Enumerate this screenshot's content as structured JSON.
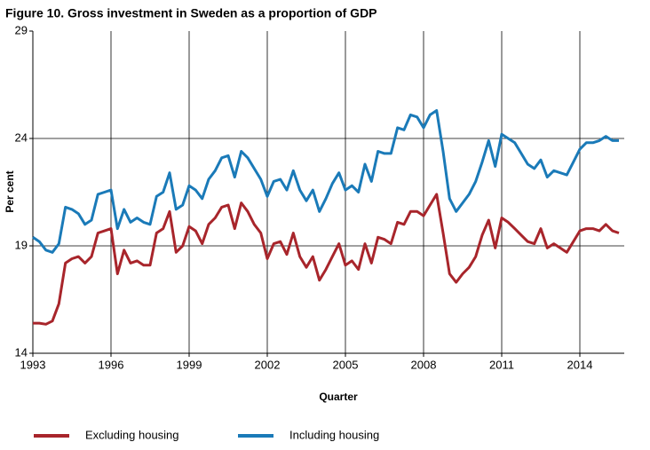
{
  "chart_data": {
    "type": "line",
    "title": "Figure 10. Gross investment in Sweden as a proportion of GDP",
    "xlabel": "Quarter",
    "ylabel": "Per cent",
    "categories": [
      "1993",
      null,
      null,
      null,
      null,
      null,
      null,
      null,
      null,
      null,
      null,
      null,
      "1996",
      null,
      null,
      null,
      null,
      null,
      null,
      null,
      null,
      null,
      null,
      null,
      "1999",
      null,
      null,
      null,
      null,
      null,
      null,
      null,
      null,
      null,
      null,
      null,
      "2002",
      null,
      null,
      null,
      null,
      null,
      null,
      null,
      null,
      null,
      null,
      null,
      "2005",
      null,
      null,
      null,
      null,
      null,
      null,
      null,
      null,
      null,
      null,
      null,
      "2008",
      null,
      null,
      null,
      null,
      null,
      null,
      null,
      null,
      null,
      null,
      null,
      "2011",
      null,
      null,
      null,
      null,
      null,
      null,
      null,
      null,
      null,
      null,
      null,
      "2014",
      null,
      null,
      null,
      null,
      null,
      null
    ],
    "series": [
      {
        "name": "Excluding housing",
        "color": "#a8252b",
        "values": [
          15.4,
          15.4,
          15.35,
          15.5,
          16.3,
          18.2,
          18.4,
          18.5,
          18.2,
          18.5,
          19.6,
          19.7,
          19.8,
          17.7,
          18.8,
          18.2,
          18.3,
          18.1,
          18.1,
          19.6,
          19.8,
          20.6,
          18.7,
          19.0,
          19.9,
          19.7,
          19.1,
          20.0,
          20.3,
          20.8,
          20.9,
          19.8,
          21.0,
          20.6,
          20.0,
          19.6,
          18.4,
          19.1,
          19.2,
          18.6,
          19.6,
          18.5,
          18.0,
          18.5,
          17.4,
          17.9,
          18.5,
          19.1,
          18.1,
          18.3,
          17.9,
          19.1,
          18.2,
          19.4,
          19.3,
          19.1,
          20.1,
          20.0,
          20.6,
          20.6,
          20.4,
          20.9,
          21.4,
          19.6,
          17.7,
          17.3,
          17.7,
          18.0,
          18.5,
          19.5,
          20.2,
          18.9,
          20.3,
          20.1,
          19.8,
          19.5,
          19.2,
          19.1,
          19.8,
          18.9,
          19.1,
          18.9,
          18.7,
          19.2,
          19.7,
          19.8,
          19.8,
          19.7,
          20.0,
          19.7,
          19.6
        ]
      },
      {
        "name": "Including housing",
        "color": "#1a7ab8",
        "values": [
          19.4,
          19.2,
          18.8,
          18.7,
          19.1,
          20.8,
          20.7,
          20.5,
          20.0,
          20.2,
          21.4,
          21.5,
          21.6,
          19.8,
          20.7,
          20.1,
          20.3,
          20.1,
          20.0,
          21.3,
          21.5,
          22.4,
          20.7,
          20.9,
          21.8,
          21.6,
          21.2,
          22.1,
          22.5,
          23.1,
          23.2,
          22.2,
          23.4,
          23.1,
          22.6,
          22.1,
          21.3,
          22.0,
          22.1,
          21.6,
          22.5,
          21.6,
          21.1,
          21.6,
          20.6,
          21.2,
          21.9,
          22.4,
          21.6,
          21.8,
          21.5,
          22.8,
          22.0,
          23.4,
          23.3,
          23.3,
          24.5,
          24.4,
          25.1,
          25.0,
          24.5,
          25.1,
          25.3,
          23.4,
          21.2,
          20.6,
          21.0,
          21.4,
          22.0,
          22.9,
          23.9,
          22.7,
          24.2,
          24.0,
          23.8,
          23.3,
          22.8,
          22.6,
          23.0,
          22.2,
          22.5,
          22.4,
          22.3,
          22.9,
          23.5,
          23.8,
          23.8,
          23.9,
          24.1,
          23.9,
          23.9
        ]
      }
    ],
    "ylim": [
      14,
      29
    ],
    "yticks": [
      14,
      19,
      24,
      29
    ],
    "grid": true,
    "legend": "bottom"
  }
}
